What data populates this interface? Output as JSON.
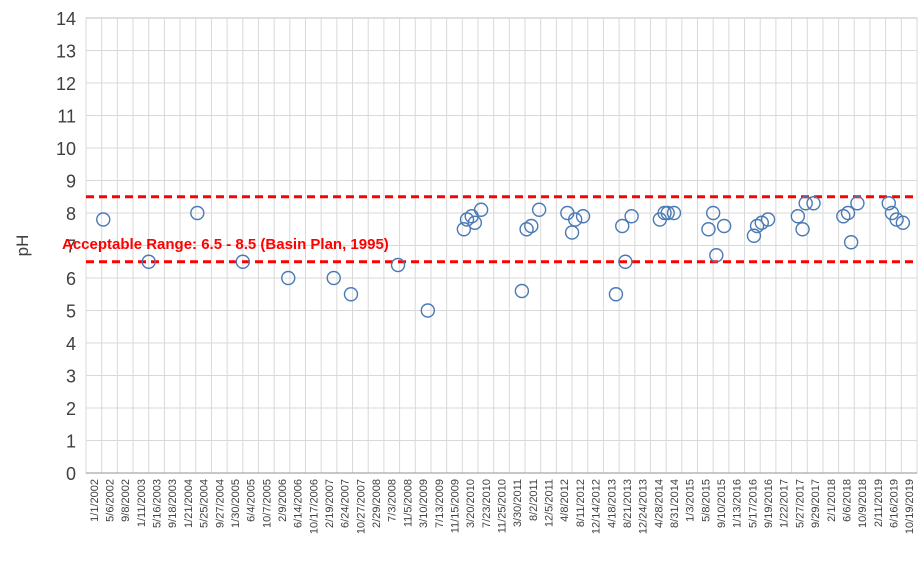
{
  "chart_data": {
    "type": "scatter",
    "title": "",
    "ylabel": "pH",
    "xlabel": "",
    "ylim": [
      0,
      14
    ],
    "y_ticks": [
      "0",
      "1",
      "2",
      "3",
      "4",
      "5",
      "6",
      "7",
      "8",
      "9",
      "10",
      "11",
      "12",
      "13",
      "14"
    ],
    "x_tick_labels": [
      "1/1/2002",
      "5/6/2002",
      "9/8/2002",
      "1/11/2003",
      "5/16/2003",
      "9/18/2003",
      "1/21/2004",
      "5/25/2004",
      "9/27/2004",
      "1/30/2005",
      "6/4/2005",
      "10/7/2005",
      "2/9/2006",
      "6/14/2006",
      "10/17/2006",
      "2/19/2007",
      "6/24/2007",
      "10/27/2007",
      "2/29/2008",
      "7/3/2008",
      "11/5/2008",
      "3/10/2009",
      "7/13/2009",
      "11/15/2009",
      "3/20/2010",
      "7/23/2010",
      "11/25/2010",
      "3/30/2011",
      "8/2/2011",
      "12/5/2011",
      "4/8/2012",
      "8/11/2012",
      "12/14/2012",
      "4/18/2013",
      "8/21/2013",
      "12/24/2013",
      "4/28/2014",
      "8/31/2014",
      "1/3/2015",
      "5/8/2015",
      "9/10/2015",
      "1/13/2016",
      "5/17/2016",
      "9/19/2016",
      "1/22/2017",
      "5/27/2017",
      "9/29/2017",
      "2/1/2018",
      "6/6/2018",
      "10/9/2018",
      "2/11/2019",
      "6/16/2019",
      "10/19/2019"
    ],
    "grid": true,
    "series": [
      {
        "marker": "open-circle",
        "color": "#4a7ab4",
        "points": [
          {
            "x": 1.1,
            "y": 7.8
          },
          {
            "x": 4.0,
            "y": 6.5
          },
          {
            "x": 7.1,
            "y": 8.0
          },
          {
            "x": 10.0,
            "y": 6.5
          },
          {
            "x": 12.9,
            "y": 6.0
          },
          {
            "x": 15.8,
            "y": 6.0
          },
          {
            "x": 16.9,
            "y": 5.5
          },
          {
            "x": 19.9,
            "y": 6.4
          },
          {
            "x": 21.8,
            "y": 5.0
          },
          {
            "x": 24.1,
            "y": 7.5
          },
          {
            "x": 24.3,
            "y": 7.8
          },
          {
            "x": 24.6,
            "y": 7.9
          },
          {
            "x": 24.8,
            "y": 7.7
          },
          {
            "x": 25.2,
            "y": 8.1
          },
          {
            "x": 27.8,
            "y": 5.6
          },
          {
            "x": 28.1,
            "y": 7.5
          },
          {
            "x": 28.4,
            "y": 7.6
          },
          {
            "x": 28.9,
            "y": 8.1
          },
          {
            "x": 30.7,
            "y": 8.0
          },
          {
            "x": 31.0,
            "y": 7.4
          },
          {
            "x": 31.2,
            "y": 7.8
          },
          {
            "x": 31.7,
            "y": 7.9
          },
          {
            "x": 33.8,
            "y": 5.5
          },
          {
            "x": 34.2,
            "y": 7.6
          },
          {
            "x": 34.4,
            "y": 6.5
          },
          {
            "x": 34.8,
            "y": 7.9
          },
          {
            "x": 36.6,
            "y": 7.8
          },
          {
            "x": 36.9,
            "y": 8.0
          },
          {
            "x": 37.1,
            "y": 8.0
          },
          {
            "x": 37.5,
            "y": 8.0
          },
          {
            "x": 39.7,
            "y": 7.5
          },
          {
            "x": 40.0,
            "y": 8.0
          },
          {
            "x": 40.2,
            "y": 6.7
          },
          {
            "x": 40.7,
            "y": 7.6
          },
          {
            "x": 42.6,
            "y": 7.3
          },
          {
            "x": 42.8,
            "y": 7.6
          },
          {
            "x": 43.1,
            "y": 7.7
          },
          {
            "x": 43.5,
            "y": 7.8
          },
          {
            "x": 45.4,
            "y": 7.9
          },
          {
            "x": 45.7,
            "y": 7.5
          },
          {
            "x": 45.9,
            "y": 8.3
          },
          {
            "x": 46.4,
            "y": 8.3
          },
          {
            "x": 48.3,
            "y": 7.9
          },
          {
            "x": 48.6,
            "y": 8.0
          },
          {
            "x": 48.8,
            "y": 7.1
          },
          {
            "x": 49.2,
            "y": 8.3
          },
          {
            "x": 51.2,
            "y": 8.3
          },
          {
            "x": 51.4,
            "y": 8.0
          },
          {
            "x": 51.7,
            "y": 7.8
          },
          {
            "x": 52.1,
            "y": 7.7
          }
        ]
      }
    ],
    "reference_lines": [
      {
        "y": 8.5,
        "color": "#ff0000",
        "style": "dashed"
      },
      {
        "y": 6.5,
        "color": "#ff0000",
        "style": "dashed"
      }
    ],
    "annotations": [
      {
        "text": "Acceptable Range: 6.5 - 8.5 (Basin Plan, 1995)",
        "x": 0.0,
        "y": 7.05,
        "color": "#ff0000"
      }
    ]
  }
}
